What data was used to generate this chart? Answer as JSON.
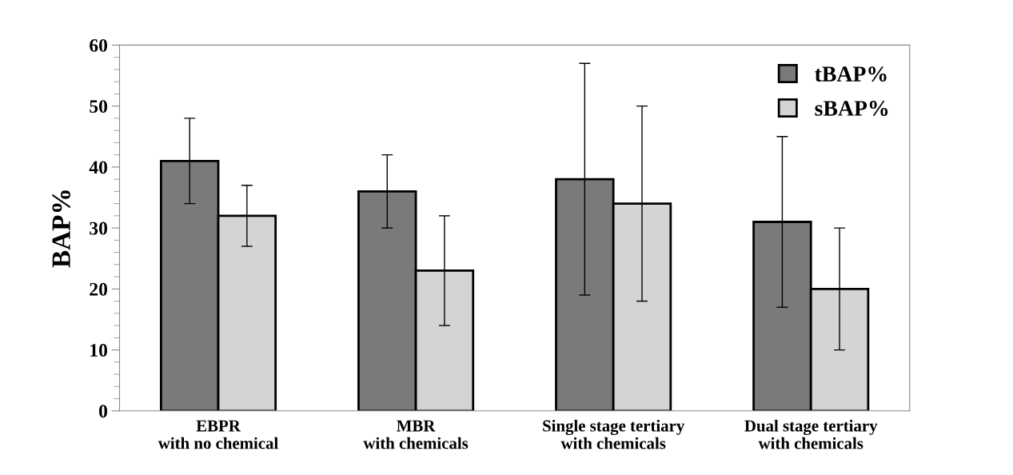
{
  "chart_data": {
    "type": "bar",
    "ylabel": "BAP%",
    "categories": [
      "EBPR\nwith no chemical",
      "MBR\nwith chemicals",
      "Single stage tertiary\nwith chemicals",
      "Dual stage tertiary\nwith chemicals"
    ],
    "series": [
      {
        "name": "tBAP%",
        "color": "#7a7a7a",
        "values": [
          41,
          36,
          38,
          31
        ],
        "errors": [
          7,
          6,
          19,
          14
        ]
      },
      {
        "name": "sBAP%",
        "color": "#d4d4d4",
        "values": [
          32,
          23,
          34,
          20
        ],
        "errors": [
          5,
          9,
          16,
          10
        ]
      }
    ],
    "ylim": [
      0,
      60
    ],
    "yticks": [
      0,
      10,
      20,
      30,
      40,
      50,
      60
    ],
    "grid": false,
    "legend": "top right"
  }
}
